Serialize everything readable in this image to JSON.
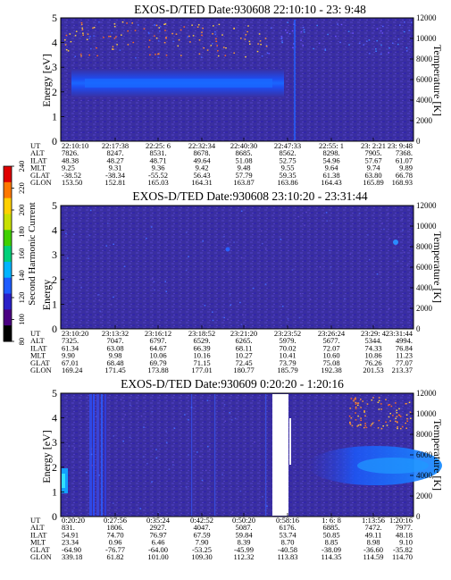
{
  "chart_data": [
    {
      "type": "heatmap",
      "title": "EXOS-D/TED  Date:930608  22:10:10 - 23: 9:48",
      "ylabel": "Energy [eV]",
      "y2label": "Temperature [K]",
      "ylim": [
        0,
        5
      ],
      "y_ticks": [
        "0",
        "1",
        "2",
        "3",
        "4",
        "5"
      ],
      "y2lim": [
        0,
        12000
      ],
      "y2_ticks": [
        "0",
        "2000",
        "4000",
        "6000",
        "8000",
        "10000",
        "12000"
      ],
      "band_ev": [
        1.9,
        2.9
      ],
      "row_labels": [
        "UT",
        "ALT",
        "ILAT",
        "MLT",
        "GLAT",
        "GLON"
      ],
      "columns": [
        [
          "22:10:10",
          "7826.",
          "48.38",
          "9.25",
          "-38.52",
          "153.50"
        ],
        [
          "22:17:38",
          "8247.",
          "48.27",
          "9.31",
          "-38.34",
          "152.81"
        ],
        [
          "22:25: 6",
          "8531.",
          "48.71",
          "9.36",
          "-55.52",
          "165.03"
        ],
        [
          "22:32:34",
          "8678.",
          "49.64",
          "9.42",
          "56.43",
          "164.31"
        ],
        [
          "22:40:30",
          "8685.",
          "51.08",
          "9.48",
          "57.79",
          "163.87"
        ],
        [
          "22:47:33",
          "8562.",
          "52.75",
          "9.55",
          "59.35",
          "163.86"
        ],
        [
          "22:55: 1",
          "8298.",
          "54.96",
          "9.64",
          "61.38",
          "164.43"
        ],
        [
          "23: 2:21",
          "7905.",
          "57.67",
          "9.74",
          "63.80",
          "165.89"
        ],
        [
          "23: 9:48",
          "7368.",
          "61.07",
          "9.89",
          "66.78",
          "168.93"
        ]
      ]
    },
    {
      "type": "heatmap",
      "title": "EXOS-D/TED  Date:930608  23:10:20 - 23:31:44",
      "ylabel": "Energy",
      "y2label": "Temperature [K]",
      "ylim": [
        0,
        5
      ],
      "y_ticks": [
        "0",
        "1",
        "2",
        "3",
        "4",
        "5"
      ],
      "y2lim": [
        0,
        12000
      ],
      "y2_ticks": [
        "0",
        "2000",
        "4000",
        "6000",
        "8000",
        "10000",
        "12000"
      ],
      "row_labels": [
        "UT",
        "ALT",
        "ILAT",
        "MLT",
        "GLAT",
        "GLON"
      ],
      "columns": [
        [
          "23:10:20",
          "7325.",
          "61.34",
          "9.90",
          "67.01",
          "169.24"
        ],
        [
          "23:13:32",
          "7047.",
          "63.08",
          "9.98",
          "68.48",
          "171.45"
        ],
        [
          "23:16:12",
          "6797.",
          "64.67",
          "10.06",
          "69.79",
          "173.88"
        ],
        [
          "23:18:52",
          "6529.",
          "66.39",
          "10.16",
          "71.15",
          "177.01"
        ],
        [
          "23:21:20",
          "6265.",
          "68.11",
          "10.27",
          "72.45",
          "180.77"
        ],
        [
          "23:23:52",
          "5979.",
          "70.02",
          "10.41",
          "73.79",
          "185.79"
        ],
        [
          "23:26:24",
          "5677.",
          "72.07",
          "10.60",
          "75.08",
          "192.38"
        ],
        [
          "23:29: 4",
          "5344.",
          "74.33",
          "10.86",
          "76.26",
          "201.53"
        ],
        [
          "23:31:44",
          "4994.",
          "76.84",
          "11.23",
          "77.07",
          "213.37"
        ]
      ]
    },
    {
      "type": "heatmap",
      "title": "EXOS-D/TED  Date:930609  0:20:20 - 1:20:16",
      "ylabel": "Energy [eV]",
      "y2label": "Temperature [K]",
      "ylim": [
        0,
        5
      ],
      "y_ticks": [
        "0",
        "1",
        "2",
        "3",
        "4",
        "5"
      ],
      "y2lim": [
        0,
        12000
      ],
      "y2_ticks": [
        "0",
        "2000",
        "4000",
        "6000",
        "8000",
        "10000",
        "12000"
      ],
      "data_gap": "between 0:50:20 and 0:58:16",
      "row_labels": [
        "UT",
        "ALT",
        "ILAT",
        "MLT",
        "GLAT",
        "GLON"
      ],
      "columns": [
        [
          "0:20:20",
          "831.",
          "54.91",
          "23.34",
          "-64.90",
          "339.18"
        ],
        [
          "0:27:56",
          "1806.",
          "74.70",
          "0.96",
          "-76.77",
          "61.82"
        ],
        [
          "0:35:24",
          "2927.",
          "76.97",
          "6.46",
          "-64.00",
          "101.00"
        ],
        [
          "0:42:52",
          "4047.",
          "67.59",
          "7.90",
          "-53.25",
          "109.30"
        ],
        [
          "0:50:20",
          "5087.",
          "59.84",
          "8.39",
          "-45.99",
          "112.32"
        ],
        [
          "0:58:16",
          "6176.",
          "53.74",
          "8.70",
          "-40.58",
          "113.83"
        ],
        [
          "1: 6: 8",
          "6885.",
          "50.85",
          "8.85",
          "-38.09",
          "114.35"
        ],
        [
          "1:13:56",
          "7472.",
          "49.11",
          "8.98",
          "-36.60",
          "114.59"
        ],
        [
          "1:20:16",
          "7977.",
          "48.18",
          "9.10",
          "-35.82",
          "114.70"
        ]
      ]
    }
  ],
  "colorbar": {
    "label": "Second Harmonic Current",
    "ticks": [
      "80",
      "100",
      "120",
      "140",
      "160",
      "180",
      "200",
      "220",
      "240"
    ],
    "colors": [
      "#000000",
      "#4b0082",
      "#2a20c8",
      "#1e5cff",
      "#00b4ff",
      "#00d07a",
      "#40d000",
      "#c8e000",
      "#ffd000",
      "#ff7800",
      "#e00000"
    ]
  }
}
